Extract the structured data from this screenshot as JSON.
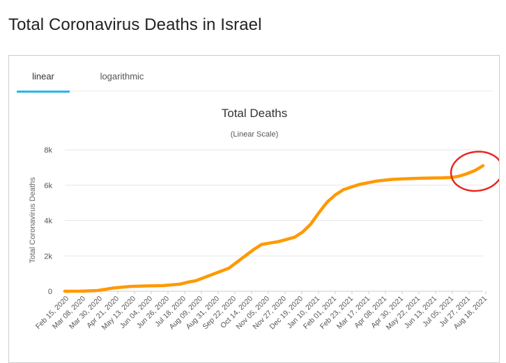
{
  "page": {
    "title": "Total Coronavirus Deaths in Israel"
  },
  "tabs": [
    {
      "label": "linear",
      "active": true
    },
    {
      "label": "logarithmic",
      "active": false
    }
  ],
  "colors": {
    "line": "#FF9900",
    "tab_active": "#29b6e8",
    "annotation_circle": "#E8271E",
    "grid": "#e6e6e6"
  },
  "chart_data": {
    "type": "line",
    "title": "Total Deaths",
    "subtitle": "(Linear Scale)",
    "ylabel": "Total Coronavirus Deaths",
    "xlabel": "",
    "ylim": [
      0,
      8000
    ],
    "y_ticks": [
      {
        "value": 0,
        "label": "0"
      },
      {
        "value": 2000,
        "label": "2k"
      },
      {
        "value": 4000,
        "label": "4k"
      },
      {
        "value": 6000,
        "label": "6k"
      },
      {
        "value": 8000,
        "label": "8k"
      }
    ],
    "x_range": [
      "2020-02-15",
      "2021-08-29"
    ],
    "x_tick_labels": [
      "Feb 15, 2020",
      "Mar 08, 2020",
      "Mar 30, 2020",
      "Apr 21, 2020",
      "May 13, 2020",
      "Jun 04, 2020",
      "Jun 26, 2020",
      "Jul 18, 2020",
      "Aug 09, 2020",
      "Aug 31, 2020",
      "Sep 22, 2020",
      "Oct 14, 2020",
      "Nov 05, 2020",
      "Nov 27, 2020",
      "Dec 19, 2020",
      "Jan 10, 2021",
      "Feb 01, 2021",
      "Feb 23, 2021",
      "Mar 17, 2021",
      "Apr 08, 2021",
      "Apr 30, 2021",
      "May 22, 2021",
      "Jun 13, 2021",
      "Jul 05, 2021",
      "Jul 27, 2021",
      "Aug 18, 2021"
    ],
    "grid": true,
    "legend": "none",
    "annotation": {
      "shape": "circle",
      "highlight": "Aug 2021 rise"
    },
    "series": [
      {
        "x": [
          "2020-02-15",
          "2020-03-08",
          "2020-03-30",
          "2020-04-21",
          "2020-05-13",
          "2020-06-04",
          "2020-06-26",
          "2020-07-18",
          "2020-07-30",
          "2020-08-09",
          "2020-08-31",
          "2020-09-22",
          "2020-10-14",
          "2020-10-25",
          "2020-11-05",
          "2020-11-27",
          "2020-12-19",
          "2020-12-30",
          "2021-01-10",
          "2021-01-21",
          "2021-02-01",
          "2021-02-12",
          "2021-02-23",
          "2021-03-17",
          "2021-04-08",
          "2021-04-30",
          "2021-05-22",
          "2021-06-13",
          "2021-07-05",
          "2021-07-16",
          "2021-07-27",
          "2021-08-07",
          "2021-08-18",
          "2021-08-29"
        ],
        "y": [
          0,
          5,
          40,
          190,
          270,
          300,
          320,
          400,
          520,
          600,
          950,
          1300,
          2000,
          2350,
          2650,
          2800,
          3050,
          3350,
          3800,
          4450,
          5050,
          5450,
          5750,
          6050,
          6230,
          6330,
          6370,
          6400,
          6410,
          6430,
          6500,
          6640,
          6820,
          7100
        ]
      }
    ]
  }
}
